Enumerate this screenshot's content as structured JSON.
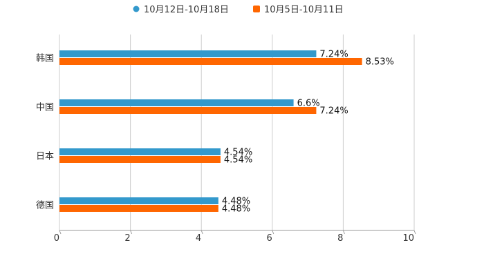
{
  "chart_data": {
    "type": "bar",
    "orientation": "horizontal",
    "categories": [
      "韩国",
      "中国",
      "日本",
      "德国"
    ],
    "series": [
      {
        "name": "10月12日-10月18日",
        "values": [
          7.24,
          6.6,
          4.54,
          4.48
        ],
        "labels": [
          "7.24%",
          "6.6%",
          "4.54%",
          "4.48%"
        ],
        "color": "#3399cc"
      },
      {
        "name": "10月5日-10月11日",
        "values": [
          8.53,
          7.24,
          4.54,
          4.48
        ],
        "labels": [
          "8.53%",
          "7.24%",
          "4.54%",
          "4.48%"
        ],
        "color": "#ff6600"
      }
    ],
    "xlim": [
      0,
      10
    ],
    "x_ticks": [
      "0",
      "2",
      "4",
      "6",
      "8",
      "10"
    ],
    "grid": true,
    "legend_position": "top-center",
    "title": "",
    "xlabel": "",
    "ylabel": ""
  }
}
